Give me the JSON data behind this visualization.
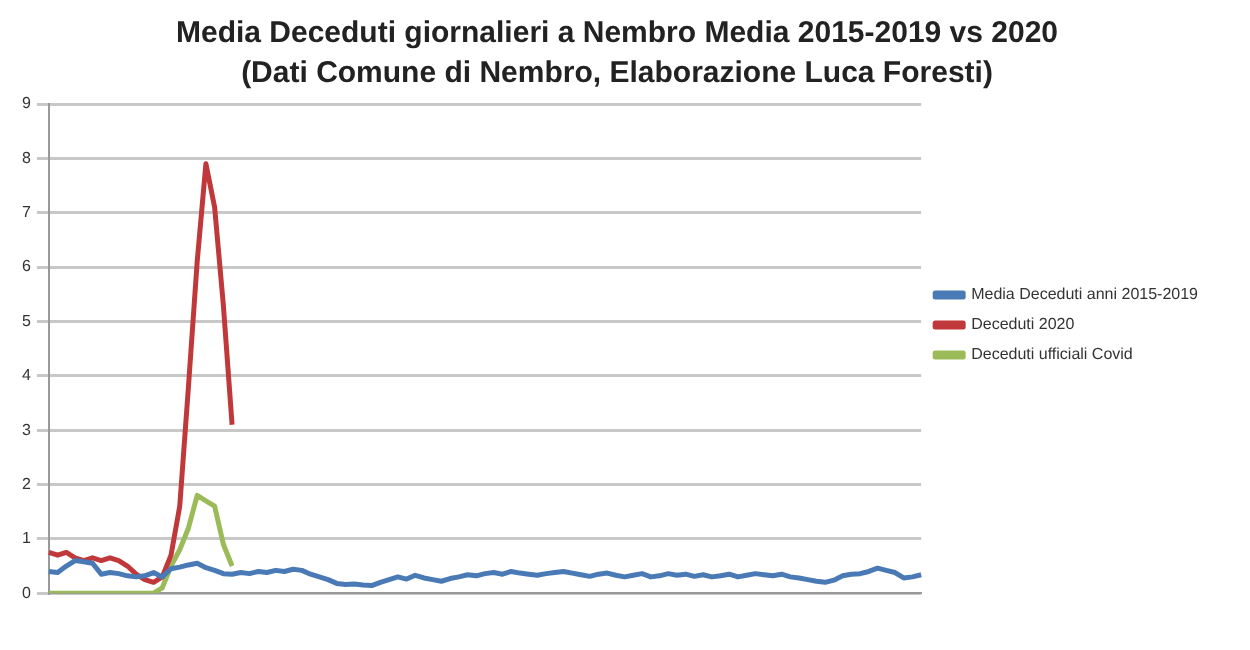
{
  "chart_data": {
    "type": "line",
    "title": "Media Deceduti giornalieri a Nembro Media 2015-2019 vs 2020",
    "subtitle": "(Dati Comune di Nembro, Elaborazione Luca Foresti)",
    "categories": [
      null,
      null,
      null,
      null,
      null,
      null,
      null,
      null,
      null,
      null,
      null,
      null,
      null,
      null,
      null,
      null,
      null,
      null,
      null,
      null,
      null,
      null,
      null,
      null,
      null,
      null,
      null,
      null,
      null,
      null,
      null,
      null,
      null,
      null,
      null,
      null,
      null,
      null,
      null,
      null,
      null,
      null,
      null,
      null,
      null,
      null,
      null,
      null,
      null,
      null,
      null,
      null,
      null,
      null,
      null,
      null,
      null,
      null,
      null,
      null,
      null,
      null,
      null,
      null,
      null,
      null,
      null,
      null,
      null,
      null,
      null,
      null,
      null,
      null,
      null,
      null,
      null,
      null,
      null,
      null,
      null,
      null,
      null,
      null,
      null,
      null,
      null,
      null,
      null,
      null,
      null,
      null,
      null,
      null,
      null,
      null,
      null,
      null,
      null,
      null,
      null
    ],
    "series": [
      {
        "name": "Media Deceduti anni 2015-2019",
        "color": "#4a7ab5",
        "values": [
          0.4,
          0.38,
          0.5,
          0.6,
          0.58,
          0.55,
          0.35,
          0.38,
          0.36,
          0.32,
          0.3,
          0.32,
          0.38,
          0.3,
          0.45,
          0.48,
          0.52,
          0.55,
          0.47,
          0.42,
          0.36,
          0.35,
          0.38,
          0.36,
          0.4,
          0.38,
          0.42,
          0.4,
          0.44,
          0.42,
          0.35,
          0.3,
          0.25,
          0.18,
          0.16,
          0.17,
          0.15,
          0.14,
          0.2,
          0.25,
          0.3,
          0.26,
          0.33,
          0.28,
          0.25,
          0.22,
          0.27,
          0.3,
          0.34,
          0.32,
          0.36,
          0.38,
          0.35,
          0.4,
          0.37,
          0.35,
          0.33,
          0.36,
          0.38,
          0.4,
          0.37,
          0.34,
          0.31,
          0.35,
          0.37,
          0.33,
          0.3,
          0.33,
          0.36,
          0.3,
          0.32,
          0.36,
          0.33,
          0.35,
          0.31,
          0.34,
          0.3,
          0.32,
          0.35,
          0.3,
          0.33,
          0.36,
          0.34,
          0.32,
          0.35,
          0.3,
          0.28,
          0.25,
          0.22,
          0.2,
          0.24,
          0.32,
          0.35,
          0.36,
          0.4,
          0.46,
          0.42,
          0.38,
          0.28,
          0.3,
          0.34
        ]
      },
      {
        "name": "Deceduti 2020",
        "color": "#c0383a",
        "values": [
          0.75,
          0.7,
          0.75,
          0.65,
          0.6,
          0.65,
          0.6,
          0.65,
          0.6,
          0.5,
          0.35,
          0.25,
          0.2,
          0.3,
          0.7,
          1.6,
          3.8,
          6.1,
          7.9,
          7.1,
          5.3,
          3.1,
          null,
          null,
          null,
          null,
          null,
          null,
          null,
          null,
          null,
          null,
          null,
          null,
          null,
          null,
          null,
          null,
          null,
          null,
          null,
          null,
          null,
          null,
          null,
          null,
          null,
          null,
          null,
          null,
          null,
          null,
          null,
          null,
          null,
          null,
          null,
          null,
          null,
          null,
          null,
          null,
          null,
          null,
          null,
          null,
          null,
          null,
          null,
          null,
          null,
          null,
          null,
          null,
          null,
          null,
          null,
          null,
          null,
          null,
          null,
          null,
          null,
          null,
          null,
          null,
          null,
          null,
          null,
          null,
          null,
          null,
          null,
          null,
          null,
          null,
          null,
          null,
          null,
          null,
          null
        ]
      },
      {
        "name": "Deceduti ufficiali Covid",
        "color": "#9bbb59",
        "values": [
          0,
          0,
          0,
          0,
          0,
          0,
          0,
          0,
          0,
          0,
          0,
          0,
          0,
          0.1,
          0.5,
          0.8,
          1.2,
          1.8,
          1.7,
          1.6,
          0.9,
          0.5,
          null,
          null,
          null,
          null,
          null,
          null,
          null,
          null,
          null,
          null,
          null,
          null,
          null,
          null,
          null,
          null,
          null,
          null,
          null,
          null,
          null,
          null,
          null,
          null,
          null,
          null,
          null,
          null,
          null,
          null,
          null,
          null,
          null,
          null,
          null,
          null,
          null,
          null,
          null,
          null,
          null,
          null,
          null,
          null,
          null,
          null,
          null,
          null,
          null,
          null,
          null,
          null,
          null,
          null,
          null,
          null,
          null,
          null,
          null,
          null,
          null,
          null,
          null,
          null,
          null,
          null,
          null,
          null,
          null,
          null,
          null,
          null,
          null,
          null,
          null,
          null,
          null,
          null,
          null
        ]
      }
    ],
    "ylim": [
      0,
      9
    ],
    "yticks": [
      0,
      1,
      2,
      3,
      4,
      5,
      6,
      7,
      8,
      9
    ],
    "grid": "y",
    "legend": "right",
    "marker": "none",
    "line_style": "solid"
  }
}
